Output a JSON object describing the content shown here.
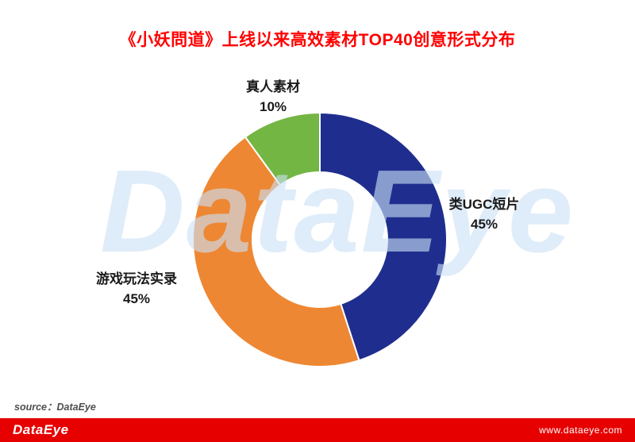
{
  "title": "《小妖問道》上线以来高效素材TOP40创意形式分布",
  "watermark": "DataEye",
  "source_note": "source：DataEye",
  "footer": {
    "logo_text": "DataEye",
    "website": "www.dataeye.com"
  },
  "colors": {
    "title_red": "#ff0000",
    "footer_bar_red": "#e60000",
    "watermark_blue": "#cbe0f5",
    "label_text": "#1a1a1a"
  },
  "chart_data": {
    "type": "pie",
    "subtype": "donut",
    "title": "《小妖問道》上线以来高效素材TOP40创意形式分布",
    "direction": "clockwise",
    "start_angle_deg": 0,
    "inner_radius_ratio": 0.53,
    "legend_position": "outside-labels",
    "slices": [
      {
        "label": "类UGC短片",
        "value": 45,
        "percent_label": "45%",
        "color": "#1f2e8e"
      },
      {
        "label": "游戏玩法实录",
        "value": 45,
        "percent_label": "45%",
        "color": "#ee8733"
      },
      {
        "label": "真人素材",
        "value": 10,
        "percent_label": "10%",
        "color": "#73b644"
      }
    ]
  }
}
